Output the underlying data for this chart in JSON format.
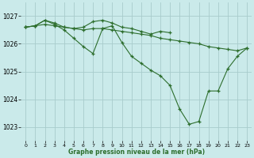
{
  "title": "Graphe pression niveau de la mer (hPa)",
  "bg_color": "#caeaea",
  "grid_color": "#a8cccc",
  "line_color": "#2d6e2d",
  "xlim": [
    -0.5,
    23.5
  ],
  "ylim": [
    1022.5,
    1027.5
  ],
  "yticks": [
    1023,
    1024,
    1025,
    1026,
    1027
  ],
  "xticks": [
    0,
    1,
    2,
    3,
    4,
    5,
    6,
    7,
    8,
    9,
    10,
    11,
    12,
    13,
    14,
    15,
    16,
    17,
    18,
    19,
    20,
    21,
    22,
    23
  ],
  "series1_x": [
    0,
    1,
    2,
    3,
    4,
    5,
    6,
    7,
    8,
    9,
    10,
    11,
    12,
    13,
    14,
    15,
    16,
    17,
    18,
    19,
    20,
    21,
    22,
    23
  ],
  "series1_y": [
    1026.6,
    1026.65,
    1026.7,
    1026.65,
    1026.6,
    1026.55,
    1026.5,
    1026.55,
    1026.55,
    1026.5,
    1026.45,
    1026.4,
    1026.35,
    1026.3,
    1026.2,
    1026.15,
    1026.1,
    1026.05,
    1026.0,
    1025.9,
    1025.85,
    1025.8,
    1025.75,
    1025.85
  ],
  "series2_x": [
    0,
    1,
    2,
    3,
    4,
    5,
    6,
    7,
    8,
    9,
    10,
    11,
    12,
    13,
    14,
    15
  ],
  "series2_y": [
    1026.6,
    1026.65,
    1026.85,
    1026.75,
    1026.6,
    1026.55,
    1026.6,
    1026.8,
    1026.85,
    1026.75,
    1026.6,
    1026.55,
    1026.45,
    1026.35,
    1026.45,
    1026.4
  ],
  "series3_x": [
    0,
    1,
    2,
    3,
    4,
    5,
    6,
    7,
    8,
    9,
    10,
    11,
    12,
    13,
    14,
    15,
    16,
    17,
    18,
    19,
    20,
    21,
    22,
    23
  ],
  "series3_y": [
    1026.6,
    1026.65,
    1026.85,
    1026.7,
    1026.5,
    1026.2,
    1025.9,
    1025.65,
    1026.55,
    1026.65,
    1026.05,
    1025.55,
    1025.3,
    1025.05,
    1024.85,
    1024.5,
    1023.65,
    1023.1,
    1023.2,
    1024.3,
    1024.3,
    1025.1,
    1025.55,
    1025.85
  ]
}
